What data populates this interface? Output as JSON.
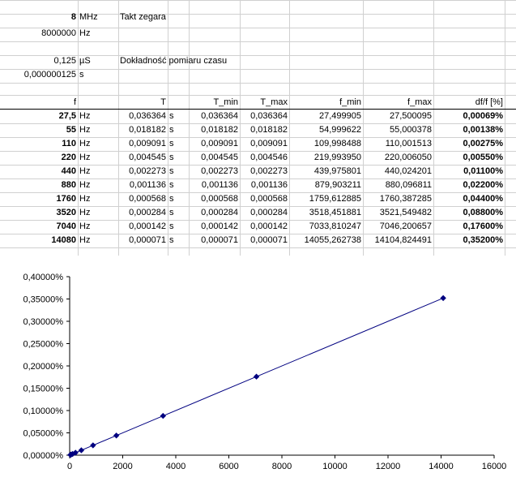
{
  "top": {
    "clock_value": "8",
    "clock_unit": "MHz",
    "clock_label": "Takt zegara",
    "clock_hz_value": "8000000",
    "clock_hz_unit": "Hz",
    "acc_value": "0,125",
    "acc_unit": "µS",
    "acc_label": "Dokładność pomiaru czasu",
    "acc_s_value": "0,000000125",
    "acc_s_unit": "s"
  },
  "table": {
    "headers": [
      "f",
      "T",
      "T_min",
      "T_max",
      "f_min",
      "f_max",
      "df/f [%]"
    ],
    "rows": [
      [
        "27,5",
        "Hz",
        "0,036364",
        "s",
        "0,036364",
        "0,036364",
        "27,499905",
        "27,500095",
        "0,00069%"
      ],
      [
        "55",
        "Hz",
        "0,018182",
        "s",
        "0,018182",
        "0,018182",
        "54,999622",
        "55,000378",
        "0,00138%"
      ],
      [
        "110",
        "Hz",
        "0,009091",
        "s",
        "0,009091",
        "0,009091",
        "109,998488",
        "110,001513",
        "0,00275%"
      ],
      [
        "220",
        "Hz",
        "0,004545",
        "s",
        "0,004545",
        "0,004546",
        "219,993950",
        "220,006050",
        "0,00550%"
      ],
      [
        "440",
        "Hz",
        "0,002273",
        "s",
        "0,002273",
        "0,002273",
        "439,975801",
        "440,024201",
        "0,01100%"
      ],
      [
        "880",
        "Hz",
        "0,001136",
        "s",
        "0,001136",
        "0,001136",
        "879,903211",
        "880,096811",
        "0,02200%"
      ],
      [
        "1760",
        "Hz",
        "0,000568",
        "s",
        "0,000568",
        "0,000568",
        "1759,612885",
        "1760,387285",
        "0,04400%"
      ],
      [
        "3520",
        "Hz",
        "0,000284",
        "s",
        "0,000284",
        "0,000284",
        "3518,451881",
        "3521,549482",
        "0,08800%"
      ],
      [
        "7040",
        "Hz",
        "0,000142",
        "s",
        "0,000142",
        "0,000142",
        "7033,810247",
        "7046,200657",
        "0,17600%"
      ],
      [
        "14080",
        "Hz",
        "0,000071",
        "s",
        "0,000071",
        "0,000071",
        "14055,262738",
        "14104,824491",
        "0,35200%"
      ]
    ]
  },
  "chart_data": {
    "type": "line",
    "x": [
      27.5,
      55,
      110,
      220,
      440,
      880,
      1760,
      3520,
      7040,
      14080
    ],
    "y": [
      6.9e-06,
      1.38e-05,
      2.75e-05,
      5.5e-05,
      0.00011,
      0.00022,
      0.00044,
      0.00088,
      0.00176,
      0.00352
    ],
    "xlim": [
      0,
      16000
    ],
    "ylim": [
      0,
      0.004
    ],
    "x_ticks": [
      "0",
      "2000",
      "4000",
      "6000",
      "8000",
      "10000",
      "12000",
      "14000",
      "16000"
    ],
    "y_ticks": [
      "0,00000%",
      "0,05000%",
      "0,10000%",
      "0,15000%",
      "0,20000%",
      "0,25000%",
      "0,30000%",
      "0,35000%",
      "0,40000%"
    ],
    "title": "",
    "xlabel": "",
    "ylabel": "",
    "line_color": "#000080",
    "grid": false,
    "legend": "none"
  }
}
